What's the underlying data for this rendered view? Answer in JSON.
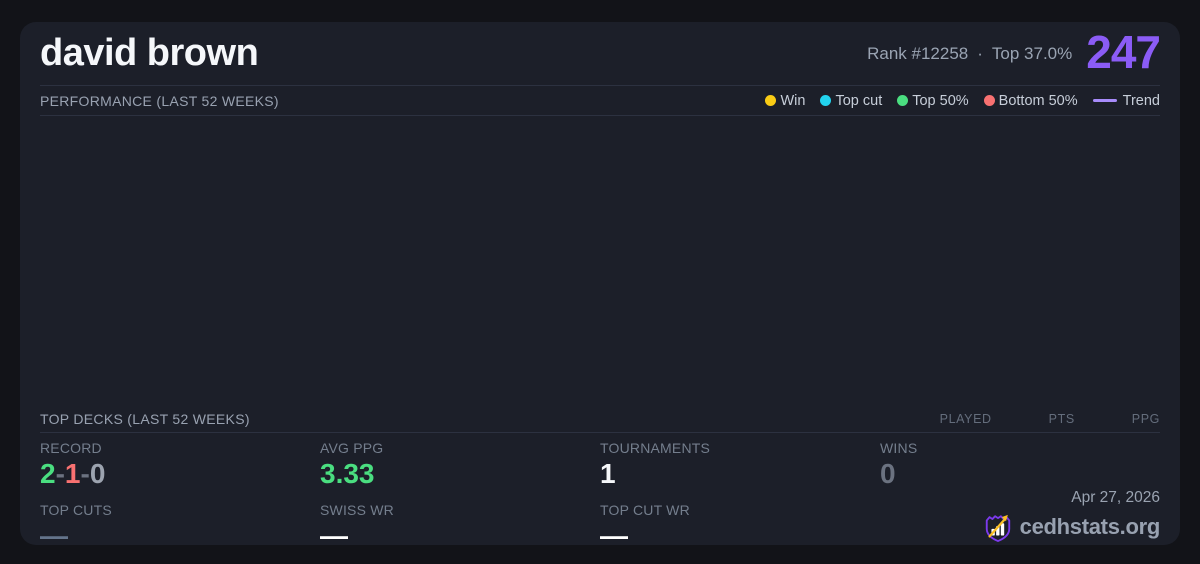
{
  "colors": {
    "page_bg": "#121318",
    "card_bg": "#1c1f29",
    "accent_purple": "#8b5cf6"
  },
  "header": {
    "player_name": "david brown",
    "rank_text": "Rank #12258",
    "dot_separator": "·",
    "top_text": "Top 37.0%",
    "score": "247",
    "score_color": "#8b5cf6"
  },
  "performance": {
    "title": "PERFORMANCE (LAST 52 WEEKS)",
    "legend": [
      {
        "label": "Win",
        "color": "#facc15",
        "type": "dot"
      },
      {
        "label": "Top cut",
        "color": "#22d3ee",
        "type": "dot"
      },
      {
        "label": "Top 50%",
        "color": "#4ade80",
        "type": "dot"
      },
      {
        "label": "Bottom 50%",
        "color": "#f87171",
        "type": "dot"
      },
      {
        "label": "Trend",
        "color": "#a78bfa",
        "type": "line"
      }
    ]
  },
  "top_decks": {
    "title": "TOP DECKS (LAST 52 WEEKS)",
    "columns": [
      "PLAYED",
      "PTS",
      "PPG"
    ],
    "rows": []
  },
  "stats": {
    "record": {
      "label": "RECORD",
      "parts": [
        {
          "text": "2",
          "color": "#4ade80"
        },
        {
          "text": "-",
          "color": "#6b7280"
        },
        {
          "text": "1",
          "color": "#f87171"
        },
        {
          "text": "-",
          "color": "#6b7280"
        },
        {
          "text": "0",
          "color": "#9ca3af"
        }
      ]
    },
    "avg_ppg": {
      "label": "AVG PPG",
      "value": "3.33",
      "color": "#4ade80"
    },
    "tournaments": {
      "label": "TOURNAMENTS",
      "value": "1",
      "color": "#f5f7fa"
    },
    "wins": {
      "label": "WINS",
      "value": "0",
      "color": "#6b7280"
    },
    "top_cuts": {
      "label": "TOP CUTS",
      "value": "—",
      "color": "#64748b"
    },
    "swiss_wr": {
      "label": "SWISS WR",
      "value": "—",
      "color": "#ffffff"
    },
    "top_cut_wr": {
      "label": "TOP CUT WR",
      "value": "—",
      "color": "#ffffff"
    }
  },
  "footer": {
    "date": "Apr 27, 2026",
    "site_name": "cedhstats.org",
    "logo": {
      "name": "cedhstats-crest-logo",
      "shield_color": "#7c3aed",
      "bars_color": "#ffffff",
      "arrow_color": "#fbbf24"
    }
  }
}
